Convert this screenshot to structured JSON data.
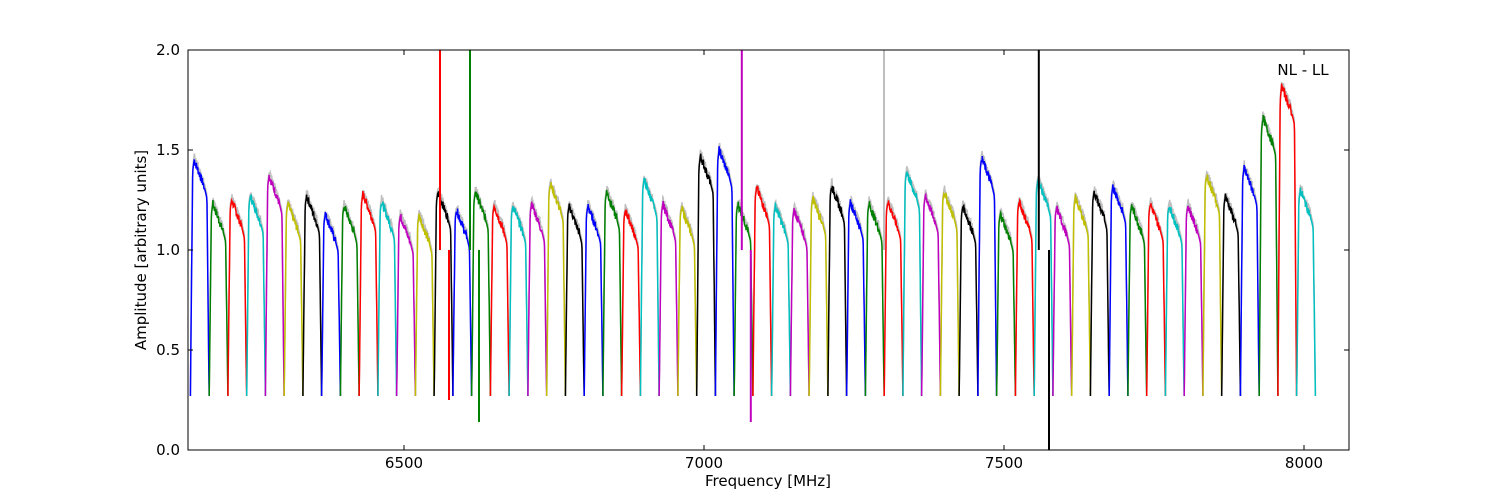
{
  "chart_data": {
    "type": "line",
    "title": "",
    "annotation": "NL - LL",
    "xlabel": "Frequency [MHz]",
    "ylabel": "Amplitude [arbitrary units]",
    "xlim": [
      6140,
      8075
    ],
    "ylim": [
      0.0,
      2.0
    ],
    "xticks": [
      6500,
      7000,
      7500,
      8000
    ],
    "yticks": [
      0.0,
      0.5,
      1.0,
      1.5,
      2.0
    ],
    "xtick_labels": [
      "6500",
      "7000",
      "7500",
      "8000"
    ],
    "ytick_labels": [
      "0.0",
      "0.5",
      "1.0",
      "1.5",
      "2.0"
    ],
    "grid": false,
    "legend": "none",
    "background_series": {
      "color": "#bfbfbf"
    },
    "color_cycle": [
      "#0000ff",
      "#008000",
      "#ff0000",
      "#00bfbf",
      "#bf00bf",
      "#bfbf00",
      "#000000"
    ],
    "channel_width_mhz": 31.25,
    "channel_start_mhz": 6144,
    "channels": [
      {
        "peak": 1.45
      },
      {
        "peak": 1.23
      },
      {
        "peak": 1.25
      },
      {
        "peak": 1.27
      },
      {
        "peak": 1.37
      },
      {
        "peak": 1.23
      },
      {
        "peak": 1.27
      },
      {
        "peak": 1.18
      },
      {
        "peak": 1.22
      },
      {
        "peak": 1.28
      },
      {
        "peak": 1.24
      },
      {
        "peak": 1.17
      },
      {
        "peak": 1.17
      },
      {
        "peak": 1.29
      },
      {
        "peak": 1.2
      },
      {
        "peak": 1.29
      },
      {
        "peak": 1.22
      },
      {
        "peak": 1.22
      },
      {
        "peak": 1.23
      },
      {
        "peak": 1.33
      },
      {
        "peak": 1.22
      },
      {
        "peak": 1.22
      },
      {
        "peak": 1.29
      },
      {
        "peak": 1.2
      },
      {
        "peak": 1.35
      },
      {
        "peak": 1.23
      },
      {
        "peak": 1.21
      },
      {
        "peak": 1.47
      },
      {
        "peak": 1.5
      },
      {
        "peak": 1.23
      },
      {
        "peak": 1.31
      },
      {
        "peak": 1.22
      },
      {
        "peak": 1.2
      },
      {
        "peak": 1.26
      },
      {
        "peak": 1.32
      },
      {
        "peak": 1.24
      },
      {
        "peak": 1.23
      },
      {
        "peak": 1.24
      },
      {
        "peak": 1.39
      },
      {
        "peak": 1.27
      },
      {
        "peak": 1.29
      },
      {
        "peak": 1.22
      },
      {
        "peak": 1.46
      },
      {
        "peak": 1.18
      },
      {
        "peak": 1.24
      },
      {
        "peak": 1.35
      },
      {
        "peak": 1.21
      },
      {
        "peak": 1.26
      },
      {
        "peak": 1.29
      },
      {
        "peak": 1.32
      },
      {
        "peak": 1.22
      },
      {
        "peak": 1.23
      },
      {
        "peak": 1.22
      },
      {
        "peak": 1.22
      },
      {
        "peak": 1.37
      },
      {
        "peak": 1.27
      },
      {
        "peak": 1.41
      },
      {
        "peak": 1.66
      },
      {
        "peak": 1.82
      },
      {
        "peak": 1.3
      }
    ],
    "spikes": [
      {
        "x": 6560,
        "y": 2.0
      },
      {
        "x": 6575,
        "y": 0.25
      },
      {
        "x": 6610,
        "y": 2.0
      },
      {
        "x": 6625,
        "y": 0.14
      },
      {
        "x": 7063,
        "y": 2.0
      },
      {
        "x": 7078,
        "y": 0.14
      },
      {
        "x": 7558,
        "y": 2.0
      },
      {
        "x": 7575,
        "y": 0.0
      },
      {
        "x": 7300,
        "y": 2.0
      }
    ]
  }
}
